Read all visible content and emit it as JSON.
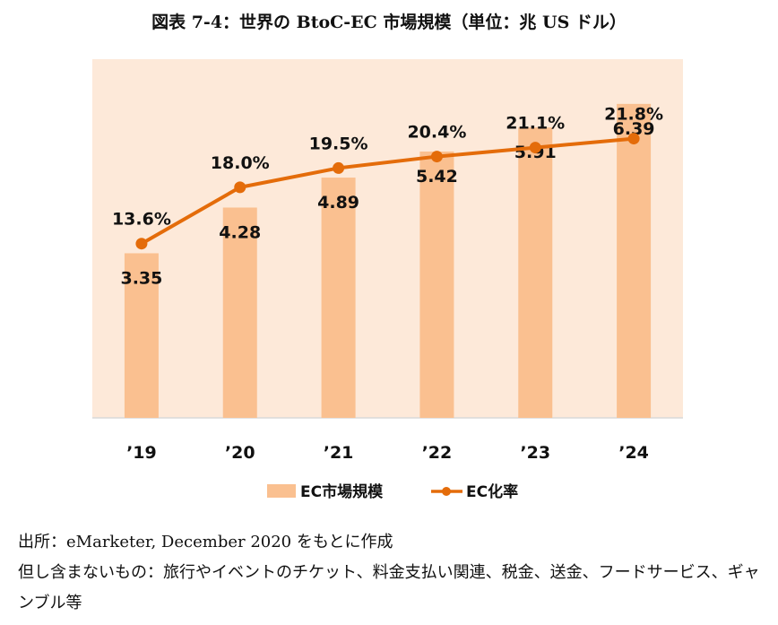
{
  "title": "図表 7-4：世界の BtoC-EC 市場規模（単位：兆 US ドル）",
  "chart_data": {
    "type": "bar+line",
    "categories": [
      "’19",
      "’20",
      "’21",
      "’22",
      "’23",
      "’24"
    ],
    "series": [
      {
        "name": "EC市場規模",
        "type": "bar",
        "values": [
          3.35,
          4.28,
          4.89,
          5.42,
          5.91,
          6.39
        ],
        "labels": [
          "3.35",
          "4.28",
          "4.89",
          "5.42",
          "5.91",
          "6.39"
        ],
        "color": "#FAC090"
      },
      {
        "name": "EC化率",
        "type": "line",
        "values": [
          13.6,
          18.0,
          19.5,
          20.4,
          21.1,
          21.8
        ],
        "labels": [
          "13.6%",
          "18.0%",
          "19.5%",
          "20.4%",
          "21.1%",
          "21.8%"
        ],
        "color": "#E46C0A"
      }
    ],
    "bar_ylim": [
      0,
      7.3
    ],
    "line_ylim": [
      0,
      28
    ],
    "plot_background": "#FDE9D9",
    "legend_position": "bottom"
  },
  "notes": [
    "出所：eMarketer, December 2020 をもとに作成",
    "但し含まないもの：旅行やイベントのチケット、料金支払い関連、税金、送金、フードサービス、ギャンブル等"
  ]
}
